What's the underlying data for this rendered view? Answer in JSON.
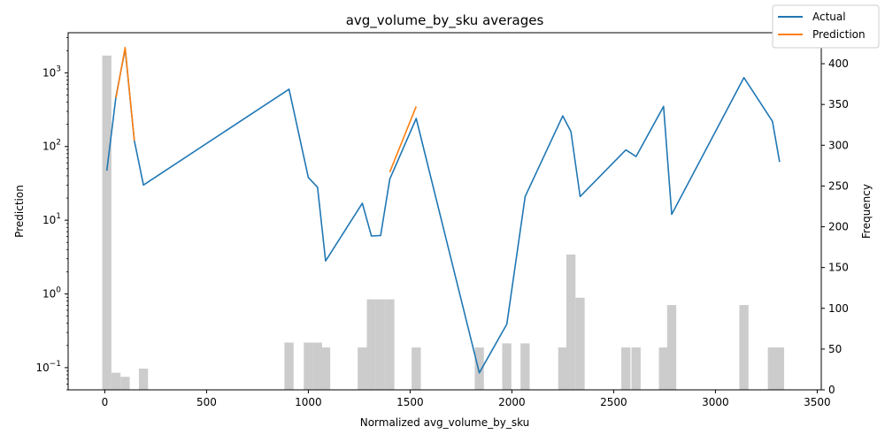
{
  "chart_data": {
    "type": "line",
    "title": "avg_volume_by_sku averages",
    "xlabel": "Normalized avg_volume_by_sku",
    "ylabel": "Prediction",
    "y2label": "Frequency",
    "xlim": [
      -180,
      3520
    ],
    "ylim": [
      0.05,
      3500
    ],
    "y_scale": "log",
    "y2lim": [
      0,
      438
    ],
    "x_ticks": [
      0,
      500,
      1000,
      1500,
      2000,
      2500,
      3000,
      3500
    ],
    "y_ticks": [
      {
        "value": 0.1,
        "base": "10",
        "exp": "−1"
      },
      {
        "value": 1,
        "base": "10",
        "exp": "0"
      },
      {
        "value": 10,
        "base": "10",
        "exp": "1"
      },
      {
        "value": 100,
        "base": "10",
        "exp": "2"
      },
      {
        "value": 1000,
        "base": "10",
        "exp": "3"
      }
    ],
    "y2_ticks": [
      0,
      50,
      100,
      150,
      200,
      250,
      300,
      350,
      400
    ],
    "legend_position": "top-right",
    "grid": false,
    "series": [
      {
        "name": "Actual",
        "color": "#1f77b4",
        "x": [
          10,
          55,
          100,
          145,
          190,
          905,
          1000,
          1045,
          1085,
          1265,
          1310,
          1355,
          1400,
          1530,
          1840,
          1975,
          2065,
          2250,
          2290,
          2335,
          2560,
          2610,
          2745,
          2785,
          3140,
          3280,
          3315
        ],
        "y": [
          47,
          480,
          2100,
          120,
          30,
          600,
          38,
          28,
          2.8,
          17,
          6.1,
          6.2,
          36,
          240,
          0.085,
          0.39,
          21,
          260,
          160,
          21,
          90,
          73,
          350,
          12,
          860,
          220,
          62
        ]
      },
      {
        "name": "Prediction",
        "color": "#ff7f0e",
        "x": [
          55,
          100,
          145,
          1400,
          1530
        ],
        "y": [
          460,
          2200,
          120,
          45,
          350
        ],
        "segments": [
          [
            0,
            1,
            2
          ],
          [
            3,
            4
          ]
        ]
      }
    ],
    "histogram": {
      "name": "Frequency",
      "color": "#cccccc",
      "bin_width": 45,
      "bins": [
        {
          "x": 10,
          "count": 410
        },
        {
          "x": 55,
          "count": 21
        },
        {
          "x": 100,
          "count": 16
        },
        {
          "x": 190,
          "count": 26
        },
        {
          "x": 905,
          "count": 58
        },
        {
          "x": 1000,
          "count": 58
        },
        {
          "x": 1045,
          "count": 58
        },
        {
          "x": 1085,
          "count": 52
        },
        {
          "x": 1265,
          "count": 52
        },
        {
          "x": 1310,
          "count": 111
        },
        {
          "x": 1355,
          "count": 111
        },
        {
          "x": 1400,
          "count": 111
        },
        {
          "x": 1530,
          "count": 52
        },
        {
          "x": 1840,
          "count": 52
        },
        {
          "x": 1975,
          "count": 57
        },
        {
          "x": 2065,
          "count": 57
        },
        {
          "x": 2250,
          "count": 52
        },
        {
          "x": 2290,
          "count": 166
        },
        {
          "x": 2335,
          "count": 113
        },
        {
          "x": 2560,
          "count": 52
        },
        {
          "x": 2610,
          "count": 52
        },
        {
          "x": 2745,
          "count": 52
        },
        {
          "x": 2785,
          "count": 104
        },
        {
          "x": 3140,
          "count": 104
        },
        {
          "x": 3280,
          "count": 52
        },
        {
          "x": 3315,
          "count": 52
        }
      ]
    }
  }
}
